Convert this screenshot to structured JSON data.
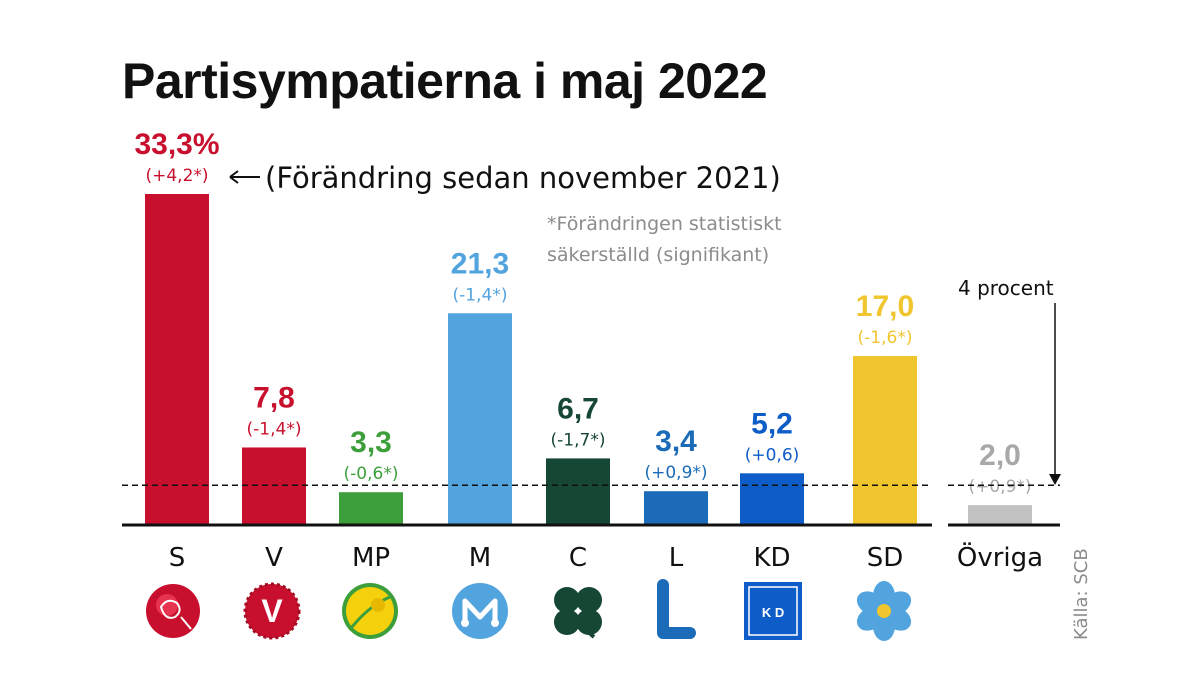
{
  "title": "Partisympatierna i maj 2022",
  "change_note": "(Förändring sedan november 2021)",
  "footnote_lines": [
    "*Förändringen statistiskt",
    "säkerställd (signifikant)"
  ],
  "threshold_label": "4 procent",
  "source": "Källa: SCB",
  "colors": {
    "S": "#c8102e",
    "V": "#c8102e",
    "MP": "#3d9f3b",
    "M": "#52a4df",
    "C": "#154734",
    "L": "#1b6bb8",
    "KD": "#0e5cc8",
    "SD": "#f0c52d",
    "Övriga": "#c2c2c2",
    "Övriga_text": "#a8a8a8"
  },
  "chart_data": {
    "type": "bar",
    "categories": [
      "S",
      "V",
      "MP",
      "M",
      "C",
      "L",
      "KD",
      "SD",
      "Övriga"
    ],
    "values": [
      33.3,
      7.8,
      3.3,
      21.3,
      6.7,
      3.4,
      5.2,
      17.0,
      2.0
    ],
    "value_labels": [
      "33,3%",
      "7,8",
      "3,3",
      "21,3",
      "6,7",
      "3,4",
      "5,2",
      "17,0",
      "2,0"
    ],
    "change_labels": [
      "(+4,2*)",
      "(-1,4*)",
      "(-0,6*)",
      "(-1,4*)",
      "(-1,7*)",
      "(+0,9*)",
      "(+0,6)",
      "(-1,6*)",
      "(+0,9*)"
    ],
    "changes": [
      4.2,
      -1.4,
      -0.6,
      -1.4,
      -1.7,
      0.9,
      0.6,
      -1.6,
      0.9
    ],
    "significant": [
      true,
      true,
      true,
      true,
      true,
      true,
      false,
      true,
      true
    ],
    "threshold": 4,
    "title": "Partisympatierna i maj 2022",
    "ylim": [
      0,
      33.3
    ],
    "grid": false,
    "legend": "none"
  },
  "logos": [
    {
      "party": "S",
      "icon": "rose-icon"
    },
    {
      "party": "V",
      "icon": "v-flower-icon",
      "text": "V"
    },
    {
      "party": "MP",
      "icon": "dandelion-icon"
    },
    {
      "party": "M",
      "icon": "m-logo-icon"
    },
    {
      "party": "C",
      "icon": "clover-icon"
    },
    {
      "party": "L",
      "icon": "l-logo-icon"
    },
    {
      "party": "KD",
      "icon": "kd-logo-icon",
      "text": "K D"
    },
    {
      "party": "SD",
      "icon": "blue-anemone-icon"
    }
  ]
}
